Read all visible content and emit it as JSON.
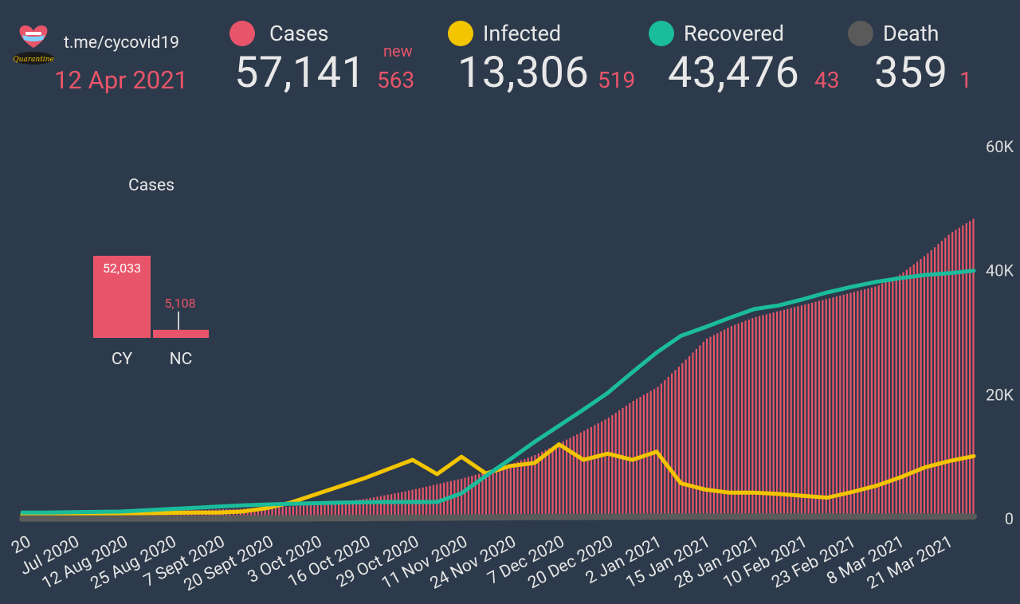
{
  "header": {
    "channel": "t.me/cycovid19",
    "date": "12 Apr 2021"
  },
  "stats": [
    {
      "key": "cases",
      "label": "Cases",
      "value": "57,141",
      "delta": "563",
      "delta_label": "new",
      "color": "#e8556a"
    },
    {
      "key": "infected",
      "label": "Infected",
      "value": "13,306",
      "delta": "519",
      "color": "#f2c500"
    },
    {
      "key": "recovered",
      "label": "Recovered",
      "value": "43,476",
      "delta": "43",
      "color": "#1bbc9b"
    },
    {
      "key": "death",
      "label": "Death",
      "value": "359",
      "delta": "1",
      "color": "#5a5a5a"
    }
  ],
  "icons": {
    "logo": "cyprus-heart-logo-icon"
  },
  "chart_data": [
    {
      "type": "bar",
      "title": "Cases",
      "categories": [
        "CY",
        "NC"
      ],
      "values": [
        52033,
        5108
      ],
      "value_labels": [
        "52,033",
        "5,108"
      ],
      "color": "#e8556a"
    },
    {
      "type": "line",
      "x_tick_labels": [
        "20",
        "Jul 2020",
        "12 Aug 2020",
        "25 Aug 2020",
        "7 Sept 2020",
        "20 Sept 2020",
        "3 Oct 2020",
        "16 Oct 2020",
        "29 Oct 2020",
        "11 Nov 2020",
        "24 Nov 2020",
        "7 Dec 2020",
        "20 Dec 2020",
        "2 Jan 2021",
        "15 Jan 2021",
        "28 Jan 2021",
        "10 Feb 2021",
        "23 Feb 2021",
        "8 Mar 2021",
        "21 Mar 2021"
      ],
      "y_ticks": [
        0,
        20000,
        40000,
        60000
      ],
      "y_tick_labels": [
        "0",
        "20K",
        "40K",
        "60K"
      ],
      "ylim": [
        0,
        60000
      ],
      "grid": false,
      "y_axis_side": "right",
      "series": [
        {
          "name": "Cases",
          "style": "bars",
          "color": "#e8556a",
          "values": [
            1000,
            1050,
            1100,
            1150,
            1200,
            1260,
            1320,
            1400,
            1500,
            1620,
            1780,
            2000,
            2300,
            2700,
            3200,
            3900,
            4700,
            5600,
            6500,
            7600,
            8800,
            10300,
            12200,
            14200,
            16300,
            19000,
            21200,
            25000,
            29000,
            31000,
            32500,
            33500,
            34500,
            35500,
            36500,
            37500,
            39500,
            42500,
            46000,
            48500
          ]
        },
        {
          "name": "Infected",
          "style": "line",
          "color": "#f2c500",
          "values": [
            700,
            760,
            800,
            820,
            850,
            900,
            950,
            1000,
            1000,
            1150,
            1700,
            2600,
            3900,
            5200,
            6500,
            8000,
            9500,
            7200,
            10000,
            7300,
            8500,
            9000,
            12000,
            9500,
            10500,
            9500,
            10800,
            5700,
            4700,
            4200,
            4200,
            4000,
            3700,
            3400,
            4300,
            5300,
            6700,
            8300,
            9300,
            10100
          ]
        },
        {
          "name": "Recovered",
          "style": "line",
          "color": "#1bbc9b",
          "values": [
            1000,
            1000,
            1050,
            1100,
            1150,
            1350,
            1550,
            1750,
            1950,
            2150,
            2300,
            2400,
            2500,
            2600,
            2650,
            2700,
            2700,
            2700,
            4100,
            6900,
            9600,
            12400,
            15000,
            17600,
            20300,
            23600,
            26800,
            29500,
            30900,
            32400,
            33800,
            34400,
            35400,
            36500,
            37400,
            38200,
            38800,
            39300,
            39600,
            40000
          ]
        },
        {
          "name": "Death",
          "style": "line",
          "color": "#5a5a5a",
          "values": [
            30,
            30,
            30,
            30,
            30,
            30,
            30,
            30,
            40,
            50,
            60,
            70,
            80,
            100,
            120,
            140,
            160,
            180,
            200,
            220,
            250,
            280,
            300,
            310,
            320,
            330,
            340,
            345,
            350,
            352,
            354,
            355,
            356,
            357,
            357,
            358,
            358,
            359,
            359,
            359
          ]
        }
      ]
    }
  ]
}
